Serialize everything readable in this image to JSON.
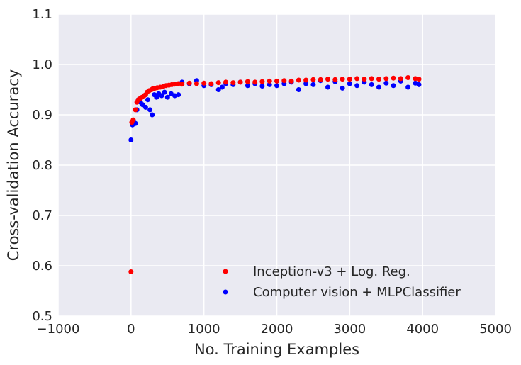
{
  "chart_data": {
    "type": "scatter",
    "xlabel": "No. Training Examples",
    "ylabel": "Cross-validation Accuracy",
    "xlim": [
      -1000,
      5000
    ],
    "ylim": [
      0.5,
      1.1
    ],
    "x_ticks": [
      "−1000",
      "0",
      "1000",
      "2000",
      "3000",
      "4000",
      "5000"
    ],
    "y_ticks": [
      "0.5",
      "0.6",
      "0.7",
      "0.8",
      "0.9",
      "1.0",
      "1.1"
    ],
    "grid": true,
    "legend_position": "lower-right",
    "colors": {
      "background": "#EAEAF2",
      "grid": "#FFFFFF"
    },
    "series": [
      {
        "name": "Inception-v3 + Log. Reg.",
        "color": "#FF0000",
        "points": [
          [
            0,
            0.588
          ],
          [
            10,
            0.885
          ],
          [
            30,
            0.89
          ],
          [
            60,
            0.91
          ],
          [
            80,
            0.925
          ],
          [
            100,
            0.93
          ],
          [
            120,
            0.932
          ],
          [
            150,
            0.935
          ],
          [
            180,
            0.938
          ],
          [
            200,
            0.94
          ],
          [
            220,
            0.945
          ],
          [
            250,
            0.948
          ],
          [
            280,
            0.95
          ],
          [
            300,
            0.952
          ],
          [
            330,
            0.953
          ],
          [
            360,
            0.954
          ],
          [
            400,
            0.955
          ],
          [
            440,
            0.956
          ],
          [
            480,
            0.958
          ],
          [
            520,
            0.959
          ],
          [
            560,
            0.96
          ],
          [
            600,
            0.961
          ],
          [
            650,
            0.962
          ],
          [
            700,
            0.961
          ],
          [
            800,
            0.963
          ],
          [
            900,
            0.962
          ],
          [
            1000,
            0.963
          ],
          [
            1100,
            0.962
          ],
          [
            1200,
            0.964
          ],
          [
            1300,
            0.965
          ],
          [
            1400,
            0.964
          ],
          [
            1500,
            0.965
          ],
          [
            1600,
            0.966
          ],
          [
            1700,
            0.965
          ],
          [
            1800,
            0.966
          ],
          [
            1900,
            0.967
          ],
          [
            2000,
            0.967
          ],
          [
            2100,
            0.968
          ],
          [
            2200,
            0.967
          ],
          [
            2300,
            0.969
          ],
          [
            2400,
            0.969
          ],
          [
            2500,
            0.97
          ],
          [
            2600,
            0.97
          ],
          [
            2700,
            0.971
          ],
          [
            2800,
            0.97
          ],
          [
            2900,
            0.971
          ],
          [
            3000,
            0.971
          ],
          [
            3100,
            0.972
          ],
          [
            3200,
            0.971
          ],
          [
            3300,
            0.972
          ],
          [
            3400,
            0.971
          ],
          [
            3500,
            0.972
          ],
          [
            3600,
            0.973
          ],
          [
            3700,
            0.972
          ],
          [
            3800,
            0.974
          ],
          [
            3900,
            0.972
          ],
          [
            3950,
            0.971
          ]
        ]
      },
      {
        "name": "Computer vision + MLPClassifier",
        "color": "#0000FF",
        "points": [
          [
            0,
            0.85
          ],
          [
            20,
            0.88
          ],
          [
            40,
            0.885
          ],
          [
            60,
            0.883
          ],
          [
            80,
            0.91
          ],
          [
            100,
            0.93
          ],
          [
            130,
            0.925
          ],
          [
            160,
            0.92
          ],
          [
            200,
            0.915
          ],
          [
            230,
            0.93
          ],
          [
            260,
            0.91
          ],
          [
            290,
            0.9
          ],
          [
            320,
            0.94
          ],
          [
            350,
            0.935
          ],
          [
            380,
            0.942
          ],
          [
            420,
            0.938
          ],
          [
            460,
            0.945
          ],
          [
            500,
            0.935
          ],
          [
            550,
            0.942
          ],
          [
            600,
            0.938
          ],
          [
            650,
            0.94
          ],
          [
            700,
            0.965
          ],
          [
            800,
            0.962
          ],
          [
            900,
            0.968
          ],
          [
            1000,
            0.958
          ],
          [
            1100,
            0.96
          ],
          [
            1200,
            0.95
          ],
          [
            1250,
            0.955
          ],
          [
            1300,
            0.962
          ],
          [
            1400,
            0.96
          ],
          [
            1500,
            0.965
          ],
          [
            1600,
            0.958
          ],
          [
            1700,
            0.962
          ],
          [
            1800,
            0.957
          ],
          [
            1900,
            0.96
          ],
          [
            2000,
            0.958
          ],
          [
            2100,
            0.962
          ],
          [
            2200,
            0.965
          ],
          [
            2300,
            0.95
          ],
          [
            2400,
            0.962
          ],
          [
            2500,
            0.96
          ],
          [
            2600,
            0.968
          ],
          [
            2700,
            0.955
          ],
          [
            2800,
            0.966
          ],
          [
            2900,
            0.953
          ],
          [
            3000,
            0.962
          ],
          [
            3100,
            0.958
          ],
          [
            3200,
            0.965
          ],
          [
            3300,
            0.96
          ],
          [
            3400,
            0.955
          ],
          [
            3500,
            0.963
          ],
          [
            3600,
            0.958
          ],
          [
            3700,
            0.967
          ],
          [
            3800,
            0.955
          ],
          [
            3900,
            0.963
          ],
          [
            3950,
            0.96
          ]
        ]
      }
    ]
  }
}
